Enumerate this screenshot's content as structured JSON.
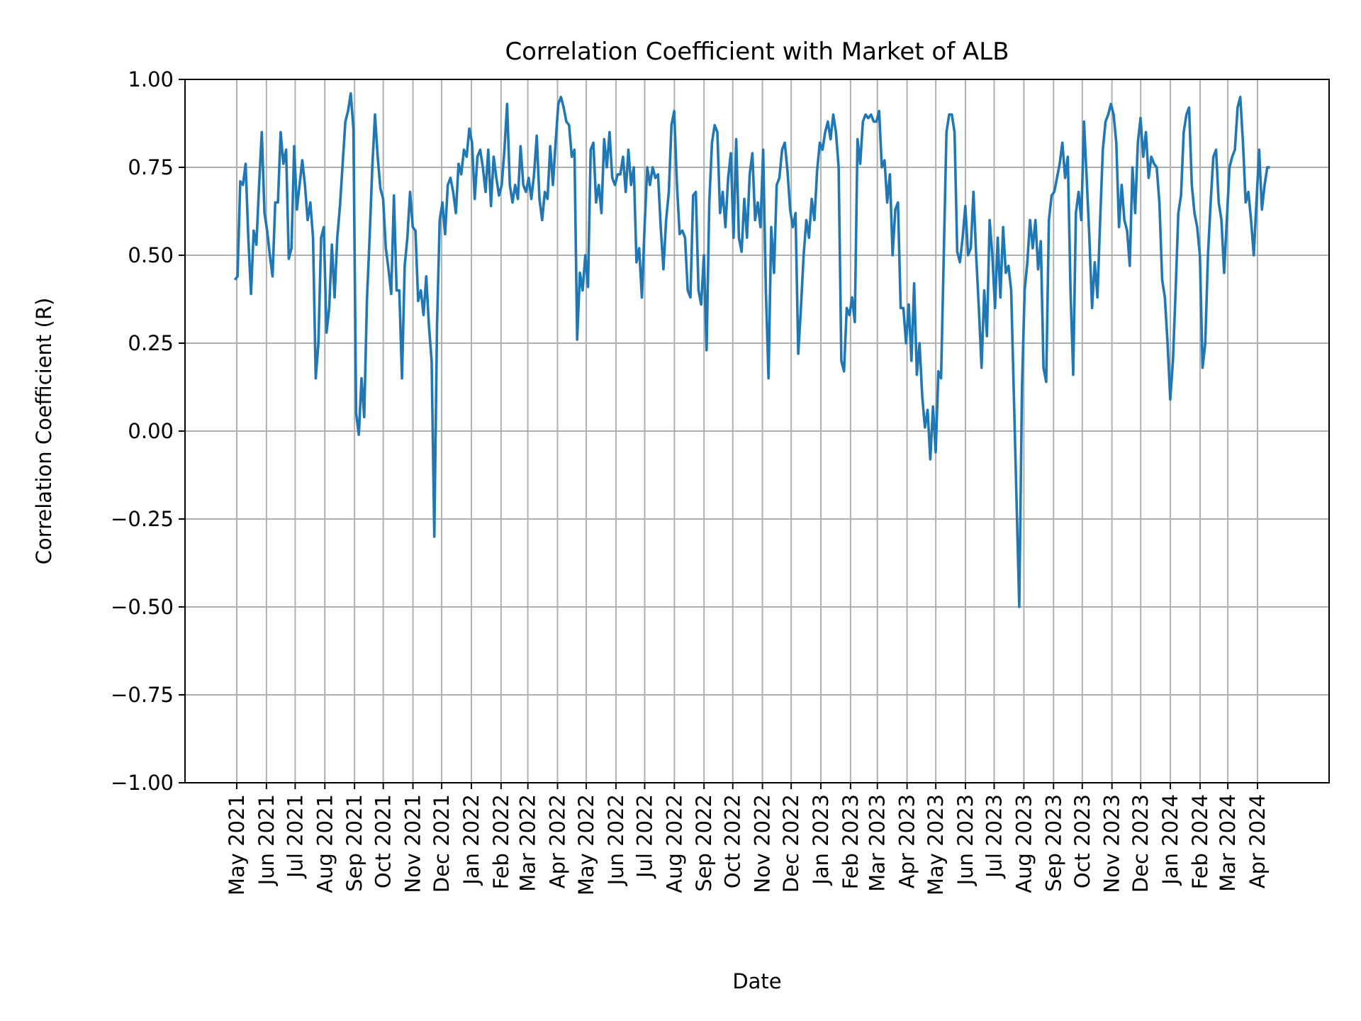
{
  "chart_data": {
    "type": "line",
    "title": "Correlation Coefficient with Market of ALB",
    "xlabel": "Date",
    "ylabel": "Correlation Coefficient (R)",
    "ylim": [
      -1.0,
      1.0
    ],
    "yticks": [
      "−1.00",
      "−0.75",
      "−0.50",
      "−0.25",
      "0.00",
      "0.25",
      "0.50",
      "0.75",
      "1.00"
    ],
    "ytick_values": [
      -1.0,
      -0.75,
      -0.5,
      -0.25,
      0,
      0.25,
      0.5,
      0.75,
      1.0
    ],
    "xticks": [
      "May 2021",
      "Jun 2021",
      "Jul 2021",
      "Aug 2021",
      "Sep 2021",
      "Oct 2021",
      "Nov 2021",
      "Dec 2021",
      "Jan 2022",
      "Feb 2022",
      "Mar 2022",
      "Apr 2022",
      "May 2022",
      "Jun 2022",
      "Jul 2022",
      "Aug 2022",
      "Sep 2022",
      "Oct 2022",
      "Nov 2022",
      "Dec 2022",
      "Jan 2023",
      "Feb 2023",
      "Mar 2023",
      "Apr 2023",
      "May 2023",
      "Jun 2023",
      "Jul 2023",
      "Aug 2023",
      "Sep 2023",
      "Oct 2023",
      "Nov 2023",
      "Dec 2023",
      "Jan 2024",
      "Feb 2024",
      "Mar 2024",
      "Apr 2024"
    ],
    "xtick_dates": [
      "2021-05-01",
      "2021-06-01",
      "2021-07-01",
      "2021-08-01",
      "2021-09-01",
      "2021-10-01",
      "2021-11-01",
      "2021-12-01",
      "2022-01-01",
      "2022-02-01",
      "2022-03-01",
      "2022-04-01",
      "2022-05-01",
      "2022-06-01",
      "2022-07-01",
      "2022-08-01",
      "2022-09-01",
      "2022-10-01",
      "2022-11-01",
      "2022-12-01",
      "2023-01-01",
      "2023-02-01",
      "2023-03-01",
      "2023-04-01",
      "2023-05-01",
      "2023-06-01",
      "2023-07-01",
      "2023-08-01",
      "2023-09-01",
      "2023-10-01",
      "2023-11-01",
      "2023-12-01",
      "2024-01-01",
      "2024-02-01",
      "2024-03-01",
      "2024-04-01"
    ],
    "grid": true,
    "color": "#1f77b4",
    "x_first": "2021-04-29",
    "x_last": "2024-04-14",
    "values": [
      0.43,
      0.44,
      0.71,
      0.7,
      0.76,
      0.55,
      0.39,
      0.57,
      0.53,
      0.7,
      0.85,
      0.62,
      0.57,
      0.5,
      0.44,
      0.65,
      0.65,
      0.85,
      0.76,
      0.8,
      0.49,
      0.52,
      0.81,
      0.63,
      0.7,
      0.77,
      0.7,
      0.6,
      0.65,
      0.55,
      0.15,
      0.25,
      0.55,
      0.58,
      0.28,
      0.35,
      0.53,
      0.38,
      0.55,
      0.64,
      0.76,
      0.88,
      0.91,
      0.96,
      0.86,
      0.05,
      -0.01,
      0.15,
      0.04,
      0.37,
      0.55,
      0.75,
      0.9,
      0.78,
      0.69,
      0.66,
      0.52,
      0.46,
      0.39,
      0.67,
      0.4,
      0.4,
      0.15,
      0.47,
      0.55,
      0.68,
      0.58,
      0.57,
      0.37,
      0.4,
      0.33,
      0.44,
      0.3,
      0.2,
      -0.3,
      0.3,
      0.6,
      0.65,
      0.56,
      0.7,
      0.72,
      0.68,
      0.62,
      0.76,
      0.73,
      0.8,
      0.78,
      0.86,
      0.82,
      0.66,
      0.78,
      0.8,
      0.75,
      0.68,
      0.8,
      0.64,
      0.78,
      0.72,
      0.67,
      0.7,
      0.8,
      0.93,
      0.7,
      0.65,
      0.7,
      0.66,
      0.81,
      0.7,
      0.68,
      0.72,
      0.66,
      0.73,
      0.84,
      0.66,
      0.6,
      0.68,
      0.66,
      0.81,
      0.7,
      0.82,
      0.93,
      0.95,
      0.92,
      0.88,
      0.87,
      0.78,
      0.8,
      0.26,
      0.45,
      0.4,
      0.5,
      0.41,
      0.8,
      0.82,
      0.65,
      0.7,
      0.62,
      0.83,
      0.75,
      0.85,
      0.72,
      0.7,
      0.73,
      0.73,
      0.78,
      0.68,
      0.8,
      0.7,
      0.75,
      0.48,
      0.52,
      0.38,
      0.58,
      0.75,
      0.7,
      0.75,
      0.72,
      0.73,
      0.58,
      0.46,
      0.6,
      0.68,
      0.87,
      0.91,
      0.7,
      0.56,
      0.57,
      0.55,
      0.4,
      0.38,
      0.67,
      0.68,
      0.4,
      0.36,
      0.5,
      0.23,
      0.65,
      0.82,
      0.87,
      0.85,
      0.62,
      0.68,
      0.58,
      0.72,
      0.79,
      0.55,
      0.83,
      0.55,
      0.51,
      0.66,
      0.55,
      0.73,
      0.79,
      0.6,
      0.65,
      0.58,
      0.8,
      0.4,
      0.15,
      0.58,
      0.45,
      0.7,
      0.72,
      0.8,
      0.82,
      0.74,
      0.63,
      0.58,
      0.62,
      0.22,
      0.35,
      0.5,
      0.6,
      0.55,
      0.66,
      0.6,
      0.74,
      0.82,
      0.8,
      0.85,
      0.88,
      0.83,
      0.9,
      0.85,
      0.75,
      0.2,
      0.17,
      0.35,
      0.33,
      0.38,
      0.31,
      0.83,
      0.76,
      0.88,
      0.9,
      0.89,
      0.9,
      0.88,
      0.88,
      0.91,
      0.75,
      0.77,
      0.65,
      0.73,
      0.5,
      0.63,
      0.65,
      0.35,
      0.35,
      0.25,
      0.36,
      0.2,
      0.42,
      0.16,
      0.25,
      0.1,
      0.01,
      0.06,
      -0.08,
      0.07,
      -0.06,
      0.17,
      0.15,
      0.5,
      0.85,
      0.9,
      0.9,
      0.85,
      0.51,
      0.48,
      0.55,
      0.64,
      0.5,
      0.52,
      0.68,
      0.5,
      0.35,
      0.18,
      0.4,
      0.27,
      0.6,
      0.5,
      0.35,
      0.55,
      0.38,
      0.58,
      0.45,
      0.47,
      0.4,
      0.1,
      -0.2,
      -0.5,
      0.12,
      0.4,
      0.48,
      0.6,
      0.52,
      0.6,
      0.46,
      0.54,
      0.18,
      0.14,
      0.6,
      0.67,
      0.68,
      0.72,
      0.76,
      0.82,
      0.72,
      0.78,
      0.4,
      0.16,
      0.62,
      0.68,
      0.6,
      0.88,
      0.72,
      0.55,
      0.35,
      0.48,
      0.38,
      0.6,
      0.8,
      0.88,
      0.9,
      0.93,
      0.9,
      0.82,
      0.58,
      0.7,
      0.6,
      0.57,
      0.47,
      0.75,
      0.62,
      0.82,
      0.89,
      0.78,
      0.85,
      0.72,
      0.78,
      0.76,
      0.75,
      0.65,
      0.43,
      0.38,
      0.25,
      0.09,
      0.2,
      0.4,
      0.62,
      0.67,
      0.85,
      0.9,
      0.92,
      0.7,
      0.62,
      0.58,
      0.5,
      0.18,
      0.25,
      0.5,
      0.65,
      0.78,
      0.8,
      0.65,
      0.6,
      0.45,
      0.6,
      0.75,
      0.78,
      0.8,
      0.92,
      0.95,
      0.82,
      0.65,
      0.68,
      0.6,
      0.5,
      0.65,
      0.8,
      0.63,
      0.7,
      0.75,
      0.75
    ]
  }
}
